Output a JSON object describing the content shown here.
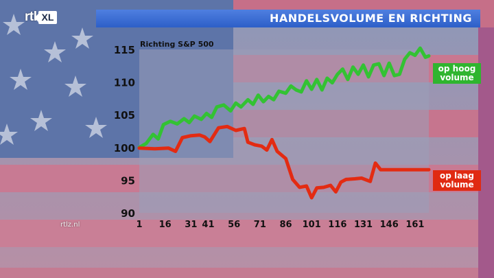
{
  "broadcaster": {
    "logo_rtl": "rtl",
    "logo_xl": "XL"
  },
  "header": {
    "title": "HANDELSVOLUME EN RICHTING"
  },
  "source": "rtlz.nl",
  "colors": {
    "high_volume": "#33c233",
    "low_volume": "#e32b12",
    "title_bar": "#3a6fd8"
  },
  "chart_data": {
    "type": "line",
    "title": "Richting S&P 500",
    "xlabel": "",
    "ylabel": "",
    "ylim": [
      90,
      115
    ],
    "yticks": [
      90,
      95,
      100,
      105,
      110,
      115
    ],
    "xlim": [
      1,
      169
    ],
    "xticks": [
      1,
      16,
      31,
      41,
      56,
      71,
      86,
      101,
      116,
      131,
      146,
      161
    ],
    "grid": false,
    "series": [
      {
        "name": "op hoog volume",
        "color": "#33c233",
        "points": [
          [
            1,
            100
          ],
          [
            5,
            100.6
          ],
          [
            9,
            102
          ],
          [
            12,
            101.3
          ],
          [
            15,
            103.5
          ],
          [
            19,
            104
          ],
          [
            23,
            103.6
          ],
          [
            27,
            104.4
          ],
          [
            30,
            103.8
          ],
          [
            33,
            104.8
          ],
          [
            37,
            104.3
          ],
          [
            40,
            105.2
          ],
          [
            43,
            104.6
          ],
          [
            46,
            106.2
          ],
          [
            50,
            106.5
          ],
          [
            54,
            105.6
          ],
          [
            57,
            106.8
          ],
          [
            60,
            106.2
          ],
          [
            64,
            107.3
          ],
          [
            67,
            106.6
          ],
          [
            70,
            108
          ],
          [
            73,
            107
          ],
          [
            76,
            107.8
          ],
          [
            79,
            107.3
          ],
          [
            82,
            108.6
          ],
          [
            86,
            108.3
          ],
          [
            89,
            109.4
          ],
          [
            92,
            108.8
          ],
          [
            95,
            108.5
          ],
          [
            98,
            110.2
          ],
          [
            101,
            108.9
          ],
          [
            104,
            110.4
          ],
          [
            107,
            108.8
          ],
          [
            110,
            110.6
          ],
          [
            113,
            109.9
          ],
          [
            116,
            111.2
          ],
          [
            119,
            112
          ],
          [
            122,
            110.4
          ],
          [
            125,
            112.3
          ],
          [
            128,
            111.2
          ],
          [
            131,
            112.6
          ],
          [
            134,
            110.8
          ],
          [
            137,
            112.6
          ],
          [
            140,
            112.8
          ],
          [
            143,
            111
          ],
          [
            146,
            112.9
          ],
          [
            149,
            111
          ],
          [
            152,
            111.2
          ],
          [
            155,
            113.5
          ],
          [
            158,
            114.5
          ],
          [
            161,
            114.1
          ],
          [
            164,
            115.2
          ],
          [
            167,
            113.8
          ],
          [
            169,
            114
          ]
        ]
      },
      {
        "name": "op laag volume",
        "color": "#e32b12",
        "points": [
          [
            1,
            99.9
          ],
          [
            10,
            99.8
          ],
          [
            18,
            99.9
          ],
          [
            22,
            99.4
          ],
          [
            26,
            101.5
          ],
          [
            31,
            101.8
          ],
          [
            36,
            101.9
          ],
          [
            39,
            101.6
          ],
          [
            42,
            100.9
          ],
          [
            47,
            103
          ],
          [
            52,
            103.2
          ],
          [
            57,
            102.6
          ],
          [
            62,
            102.9
          ],
          [
            64,
            100.8
          ],
          [
            68,
            100.4
          ],
          [
            72,
            100.2
          ],
          [
            75,
            99.6
          ],
          [
            78,
            101.2
          ],
          [
            81,
            99.4
          ],
          [
            86,
            98.3
          ],
          [
            90,
            95.1
          ],
          [
            94,
            93.9
          ],
          [
            98,
            94.1
          ],
          [
            101,
            92.3
          ],
          [
            104,
            93.8
          ],
          [
            108,
            93.9
          ],
          [
            112,
            94.2
          ],
          [
            115,
            93.2
          ],
          [
            118,
            94.7
          ],
          [
            121,
            95.1
          ],
          [
            126,
            95.2
          ],
          [
            130,
            95.3
          ],
          [
            135,
            94.8
          ],
          [
            138,
            97.6
          ],
          [
            141,
            96.6
          ],
          [
            145,
            96.6
          ],
          [
            150,
            96.6
          ],
          [
            160,
            96.6
          ],
          [
            169,
            96.6
          ]
        ]
      }
    ]
  }
}
